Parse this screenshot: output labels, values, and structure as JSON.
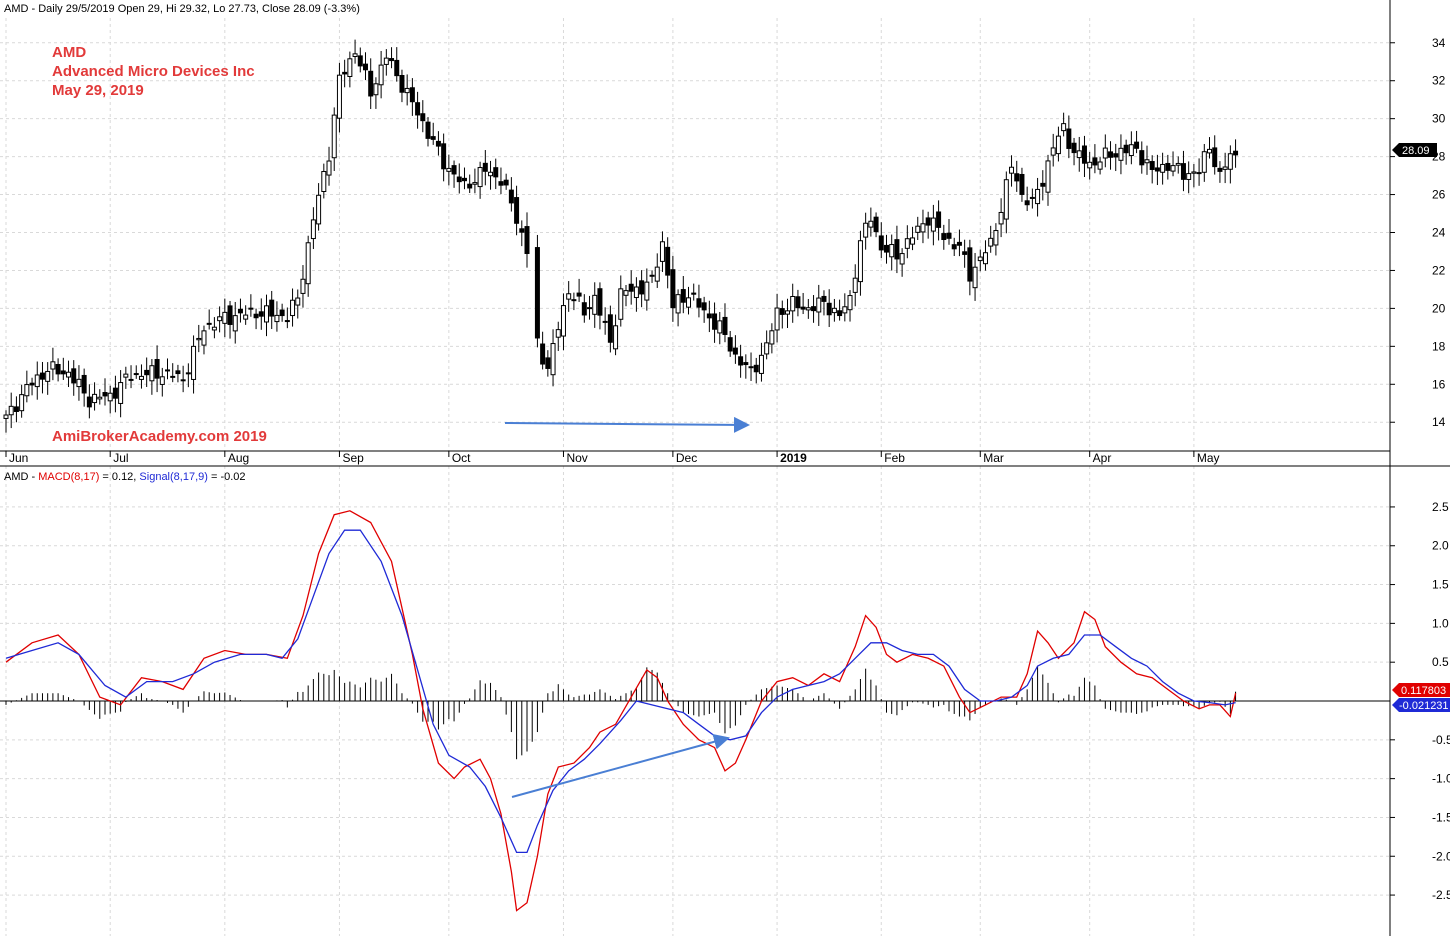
{
  "header": {
    "price_info": "AMD - Daily 29/5/2019 Open 29, Hi 29.32, Lo 27.73, Close 28.09 (-3.3%)",
    "macd_prefix": "AMD - ",
    "macd_label": "MACD(8,17)",
    "macd_value": " = 0.12, ",
    "signal_label": "Signal(8,17,9)",
    "signal_value": " = -0.02"
  },
  "annotations": {
    "title_lines": [
      "AMD",
      "Advanced Micro Devices Inc",
      "May 29, 2019"
    ],
    "watermark": "AmiBrokerAcademy.com  2019",
    "last_price_tag": "28.09",
    "macd_tag": "0.117803",
    "signal_tag": "-0.021231"
  },
  "colors": {
    "title_red": "#e23a3a",
    "macd_red": "#e00000",
    "signal_blue": "#1f2ad6",
    "arrow_blue": "#4a7fd4",
    "grid": "#d9d9d9",
    "candle": "#000000"
  },
  "chart_data": [
    {
      "type": "candlestick",
      "x_axis_labels": [
        "Jun",
        "Jul",
        "Aug",
        "Sep",
        "Oct",
        "Nov",
        "Dec",
        "2019",
        "Feb",
        "Mar",
        "Apr",
        "May"
      ],
      "x_axis_positions": [
        0,
        20,
        42,
        64,
        85,
        107,
        128,
        148,
        168,
        187,
        208,
        228
      ],
      "y_ticks": [
        14,
        16,
        18,
        20,
        22,
        24,
        26,
        28,
        30,
        32,
        34
      ],
      "ylim": [
        12.8,
        35.2
      ],
      "last_close": 28.09,
      "close_anchors": [
        [
          0,
          14.2
        ],
        [
          4,
          15.8
        ],
        [
          8,
          16.8
        ],
        [
          12,
          16.6
        ],
        [
          16,
          15.2
        ],
        [
          20,
          15.4
        ],
        [
          24,
          16.5
        ],
        [
          30,
          16.6
        ],
        [
          34,
          16.3
        ],
        [
          38,
          19.0
        ],
        [
          42,
          19.5
        ],
        [
          48,
          19.8
        ],
        [
          54,
          19.6
        ],
        [
          56,
          20.5
        ],
        [
          59,
          24.7
        ],
        [
          62,
          28.2
        ],
        [
          64,
          32.0
        ],
        [
          67,
          33.6
        ],
        [
          70,
          31.4
        ],
        [
          73,
          33.3
        ],
        [
          76,
          31.8
        ],
        [
          80,
          29.8
        ],
        [
          84,
          27.7
        ],
        [
          88,
          26.4
        ],
        [
          92,
          27.3
        ],
        [
          95,
          26.8
        ],
        [
          98,
          24.8
        ],
        [
          100,
          23.0
        ],
        [
          102,
          18.2
        ],
        [
          104,
          16.8
        ],
        [
          106,
          19.0
        ],
        [
          108,
          21.0
        ],
        [
          111,
          19.8
        ],
        [
          113,
          20.6
        ],
        [
          116,
          18.2
        ],
        [
          118,
          20.8
        ],
        [
          121,
          21.0
        ],
        [
          124,
          21.4
        ],
        [
          126,
          23.5
        ],
        [
          128,
          20.1
        ],
        [
          131,
          20.8
        ],
        [
          134,
          19.8
        ],
        [
          137,
          19.0
        ],
        [
          140,
          17.5
        ],
        [
          143,
          16.6
        ],
        [
          146,
          18.0
        ],
        [
          148,
          19.8
        ],
        [
          151,
          20.2
        ],
        [
          154,
          20.0
        ],
        [
          157,
          20.3
        ],
        [
          160,
          19.6
        ],
        [
          162,
          20.5
        ],
        [
          164,
          23.5
        ],
        [
          166,
          24.8
        ],
        [
          168,
          23.2
        ],
        [
          171,
          22.8
        ],
        [
          174,
          23.8
        ],
        [
          177,
          24.8
        ],
        [
          180,
          23.8
        ],
        [
          183,
          23.2
        ],
        [
          185,
          21.8
        ],
        [
          187,
          22.6
        ],
        [
          189,
          23.4
        ],
        [
          191,
          25.3
        ],
        [
          193,
          27.5
        ],
        [
          195,
          26.0
        ],
        [
          197,
          25.5
        ],
        [
          199,
          26.8
        ],
        [
          201,
          28.5
        ],
        [
          203,
          29.5
        ],
        [
          205,
          28.2
        ],
        [
          208,
          27.6
        ],
        [
          211,
          28.0
        ],
        [
          214,
          28.3
        ],
        [
          217,
          28.4
        ],
        [
          220,
          27.2
        ],
        [
          223,
          27.6
        ],
        [
          226,
          27.1
        ],
        [
          229,
          27.2
        ],
        [
          231,
          28.6
        ],
        [
          233,
          26.9
        ],
        [
          235,
          28.1
        ],
        [
          236,
          28.09
        ]
      ]
    },
    {
      "type": "line",
      "title": "MACD(8,17) / Signal(8,17,9)",
      "y_ticks": [
        -2.5,
        -2.0,
        -1.5,
        -1.0,
        -0.5,
        0.5,
        1.0,
        1.5,
        2.0,
        2.5
      ],
      "ylim": [
        -2.95,
        2.95
      ],
      "series": [
        {
          "name": "MACD(8,17)",
          "color": "#e00000",
          "points": [
            [
              0,
              0.5
            ],
            [
              5,
              0.75
            ],
            [
              10,
              0.85
            ],
            [
              14,
              0.6
            ],
            [
              18,
              0.05
            ],
            [
              22,
              -0.05
            ],
            [
              26,
              0.3
            ],
            [
              30,
              0.25
            ],
            [
              34,
              0.15
            ],
            [
              38,
              0.55
            ],
            [
              42,
              0.65
            ],
            [
              46,
              0.6
            ],
            [
              50,
              0.6
            ],
            [
              54,
              0.55
            ],
            [
              57,
              1.1
            ],
            [
              60,
              1.9
            ],
            [
              63,
              2.4
            ],
            [
              66,
              2.45
            ],
            [
              70,
              2.3
            ],
            [
              74,
              1.8
            ],
            [
              78,
              0.6
            ],
            [
              80,
              -0.1
            ],
            [
              83,
              -0.8
            ],
            [
              86,
              -1.0
            ],
            [
              88,
              -0.85
            ],
            [
              91,
              -0.75
            ],
            [
              93,
              -1.0
            ],
            [
              95,
              -1.45
            ],
            [
              97,
              -2.2
            ],
            [
              98,
              -2.7
            ],
            [
              100,
              -2.6
            ],
            [
              102,
              -2.0
            ],
            [
              104,
              -1.2
            ],
            [
              106,
              -0.85
            ],
            [
              109,
              -0.8
            ],
            [
              112,
              -0.6
            ],
            [
              114,
              -0.4
            ],
            [
              117,
              -0.3
            ],
            [
              120,
              0.05
            ],
            [
              123,
              0.4
            ],
            [
              125,
              0.3
            ],
            [
              127,
              0.0
            ],
            [
              130,
              -0.3
            ],
            [
              133,
              -0.5
            ],
            [
              136,
              -0.6
            ],
            [
              138,
              -0.9
            ],
            [
              140,
              -0.8
            ],
            [
              142,
              -0.5
            ],
            [
              145,
              0.0
            ],
            [
              148,
              0.25
            ],
            [
              151,
              0.3
            ],
            [
              154,
              0.2
            ],
            [
              157,
              0.35
            ],
            [
              160,
              0.25
            ],
            [
              163,
              0.7
            ],
            [
              165,
              1.1
            ],
            [
              167,
              0.95
            ],
            [
              169,
              0.6
            ],
            [
              171,
              0.5
            ],
            [
              174,
              0.6
            ],
            [
              177,
              0.55
            ],
            [
              180,
              0.45
            ],
            [
              183,
              0.05
            ],
            [
              185,
              -0.15
            ],
            [
              188,
              -0.05
            ],
            [
              191,
              0.05
            ],
            [
              194,
              0.05
            ],
            [
              196,
              0.35
            ],
            [
              198,
              0.9
            ],
            [
              200,
              0.75
            ],
            [
              202,
              0.55
            ],
            [
              205,
              0.75
            ],
            [
              207,
              1.15
            ],
            [
              209,
              1.05
            ],
            [
              211,
              0.7
            ],
            [
              214,
              0.5
            ],
            [
              217,
              0.35
            ],
            [
              220,
              0.3
            ],
            [
              223,
              0.15
            ],
            [
              226,
              0.0
            ],
            [
              229,
              -0.1
            ],
            [
              231,
              -0.05
            ],
            [
              233,
              -0.05
            ],
            [
              235,
              -0.2
            ],
            [
              236,
              0.1
            ]
          ]
        },
        {
          "name": "Signal(8,17,9)",
          "color": "#1f2ad6",
          "points": [
            [
              0,
              0.55
            ],
            [
              5,
              0.65
            ],
            [
              10,
              0.75
            ],
            [
              14,
              0.6
            ],
            [
              19,
              0.2
            ],
            [
              23,
              0.05
            ],
            [
              27,
              0.25
            ],
            [
              32,
              0.25
            ],
            [
              36,
              0.35
            ],
            [
              40,
              0.5
            ],
            [
              45,
              0.6
            ],
            [
              50,
              0.6
            ],
            [
              53,
              0.55
            ],
            [
              56,
              0.8
            ],
            [
              59,
              1.35
            ],
            [
              62,
              1.9
            ],
            [
              65,
              2.2
            ],
            [
              68,
              2.2
            ],
            [
              72,
              1.8
            ],
            [
              76,
              1.1
            ],
            [
              79,
              0.4
            ],
            [
              82,
              -0.3
            ],
            [
              85,
              -0.7
            ],
            [
              89,
              -0.85
            ],
            [
              92,
              -1.1
            ],
            [
              95,
              -1.5
            ],
            [
              98,
              -1.95
            ],
            [
              100,
              -1.95
            ],
            [
              102,
              -1.6
            ],
            [
              105,
              -1.15
            ],
            [
              108,
              -0.9
            ],
            [
              111,
              -0.75
            ],
            [
              114,
              -0.55
            ],
            [
              118,
              -0.25
            ],
            [
              121,
              0.0
            ],
            [
              124,
              -0.05
            ],
            [
              127,
              -0.1
            ],
            [
              130,
              -0.15
            ],
            [
              133,
              -0.3
            ],
            [
              136,
              -0.45
            ],
            [
              139,
              -0.5
            ],
            [
              142,
              -0.45
            ],
            [
              145,
              -0.15
            ],
            [
              148,
              0.05
            ],
            [
              151,
              0.15
            ],
            [
              154,
              0.2
            ],
            [
              157,
              0.25
            ],
            [
              160,
              0.35
            ],
            [
              163,
              0.55
            ],
            [
              166,
              0.75
            ],
            [
              169,
              0.75
            ],
            [
              172,
              0.65
            ],
            [
              175,
              0.6
            ],
            [
              178,
              0.6
            ],
            [
              181,
              0.45
            ],
            [
              184,
              0.15
            ],
            [
              187,
              0.0
            ],
            [
              190,
              0.0
            ],
            [
              193,
              0.05
            ],
            [
              196,
              0.2
            ],
            [
              198,
              0.45
            ],
            [
              201,
              0.55
            ],
            [
              204,
              0.6
            ],
            [
              207,
              0.85
            ],
            [
              210,
              0.85
            ],
            [
              213,
              0.7
            ],
            [
              216,
              0.55
            ],
            [
              219,
              0.45
            ],
            [
              222,
              0.25
            ],
            [
              225,
              0.1
            ],
            [
              228,
              0.0
            ],
            [
              231,
              -0.02
            ],
            [
              234,
              -0.05
            ],
            [
              236,
              -0.02
            ]
          ]
        }
      ]
    }
  ]
}
